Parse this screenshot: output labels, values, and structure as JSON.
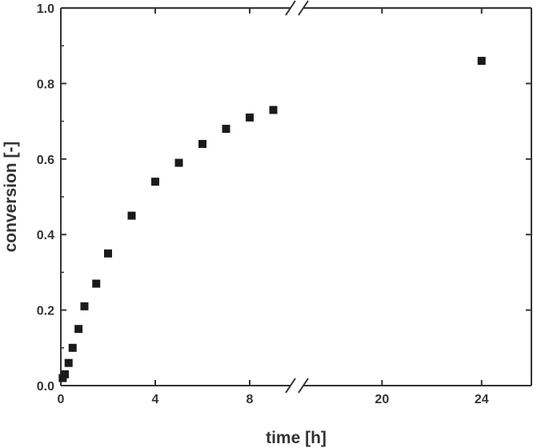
{
  "colors": {
    "axis": "#333333",
    "marker": "#1a1a1a",
    "background": "#ffffff"
  },
  "chart_data": {
    "type": "scatter",
    "title": "",
    "xlabel": "time [h]",
    "ylabel": "conversion [-]",
    "grid": false,
    "legend": "none",
    "xlim": [
      0,
      26
    ],
    "ylim": [
      0,
      1.0
    ],
    "x_axis_break": {
      "from": 10,
      "to": 17
    },
    "x_ticks": [
      0,
      4,
      8,
      20,
      24
    ],
    "x_tick_labels": [
      "0",
      "4",
      "8",
      "20",
      "24"
    ],
    "y_ticks": [
      0.0,
      0.2,
      0.4,
      0.6,
      0.8,
      1.0
    ],
    "y_tick_labels": [
      "0.0",
      "0.2",
      "0.4",
      "0.6",
      "0.8",
      "1.0"
    ],
    "series": [
      {
        "marker": "square",
        "points": [
          {
            "x": 0.08,
            "y": 0.02
          },
          {
            "x": 0.17,
            "y": 0.03
          },
          {
            "x": 0.33,
            "y": 0.06
          },
          {
            "x": 0.5,
            "y": 0.1
          },
          {
            "x": 0.75,
            "y": 0.15
          },
          {
            "x": 1.0,
            "y": 0.21
          },
          {
            "x": 1.5,
            "y": 0.27
          },
          {
            "x": 2.0,
            "y": 0.35
          },
          {
            "x": 3.0,
            "y": 0.45
          },
          {
            "x": 4.0,
            "y": 0.54
          },
          {
            "x": 5.0,
            "y": 0.59
          },
          {
            "x": 6.0,
            "y": 0.64
          },
          {
            "x": 7.0,
            "y": 0.68
          },
          {
            "x": 8.0,
            "y": 0.71
          },
          {
            "x": 9.0,
            "y": 0.73
          },
          {
            "x": 24.0,
            "y": 0.86
          }
        ]
      }
    ]
  }
}
